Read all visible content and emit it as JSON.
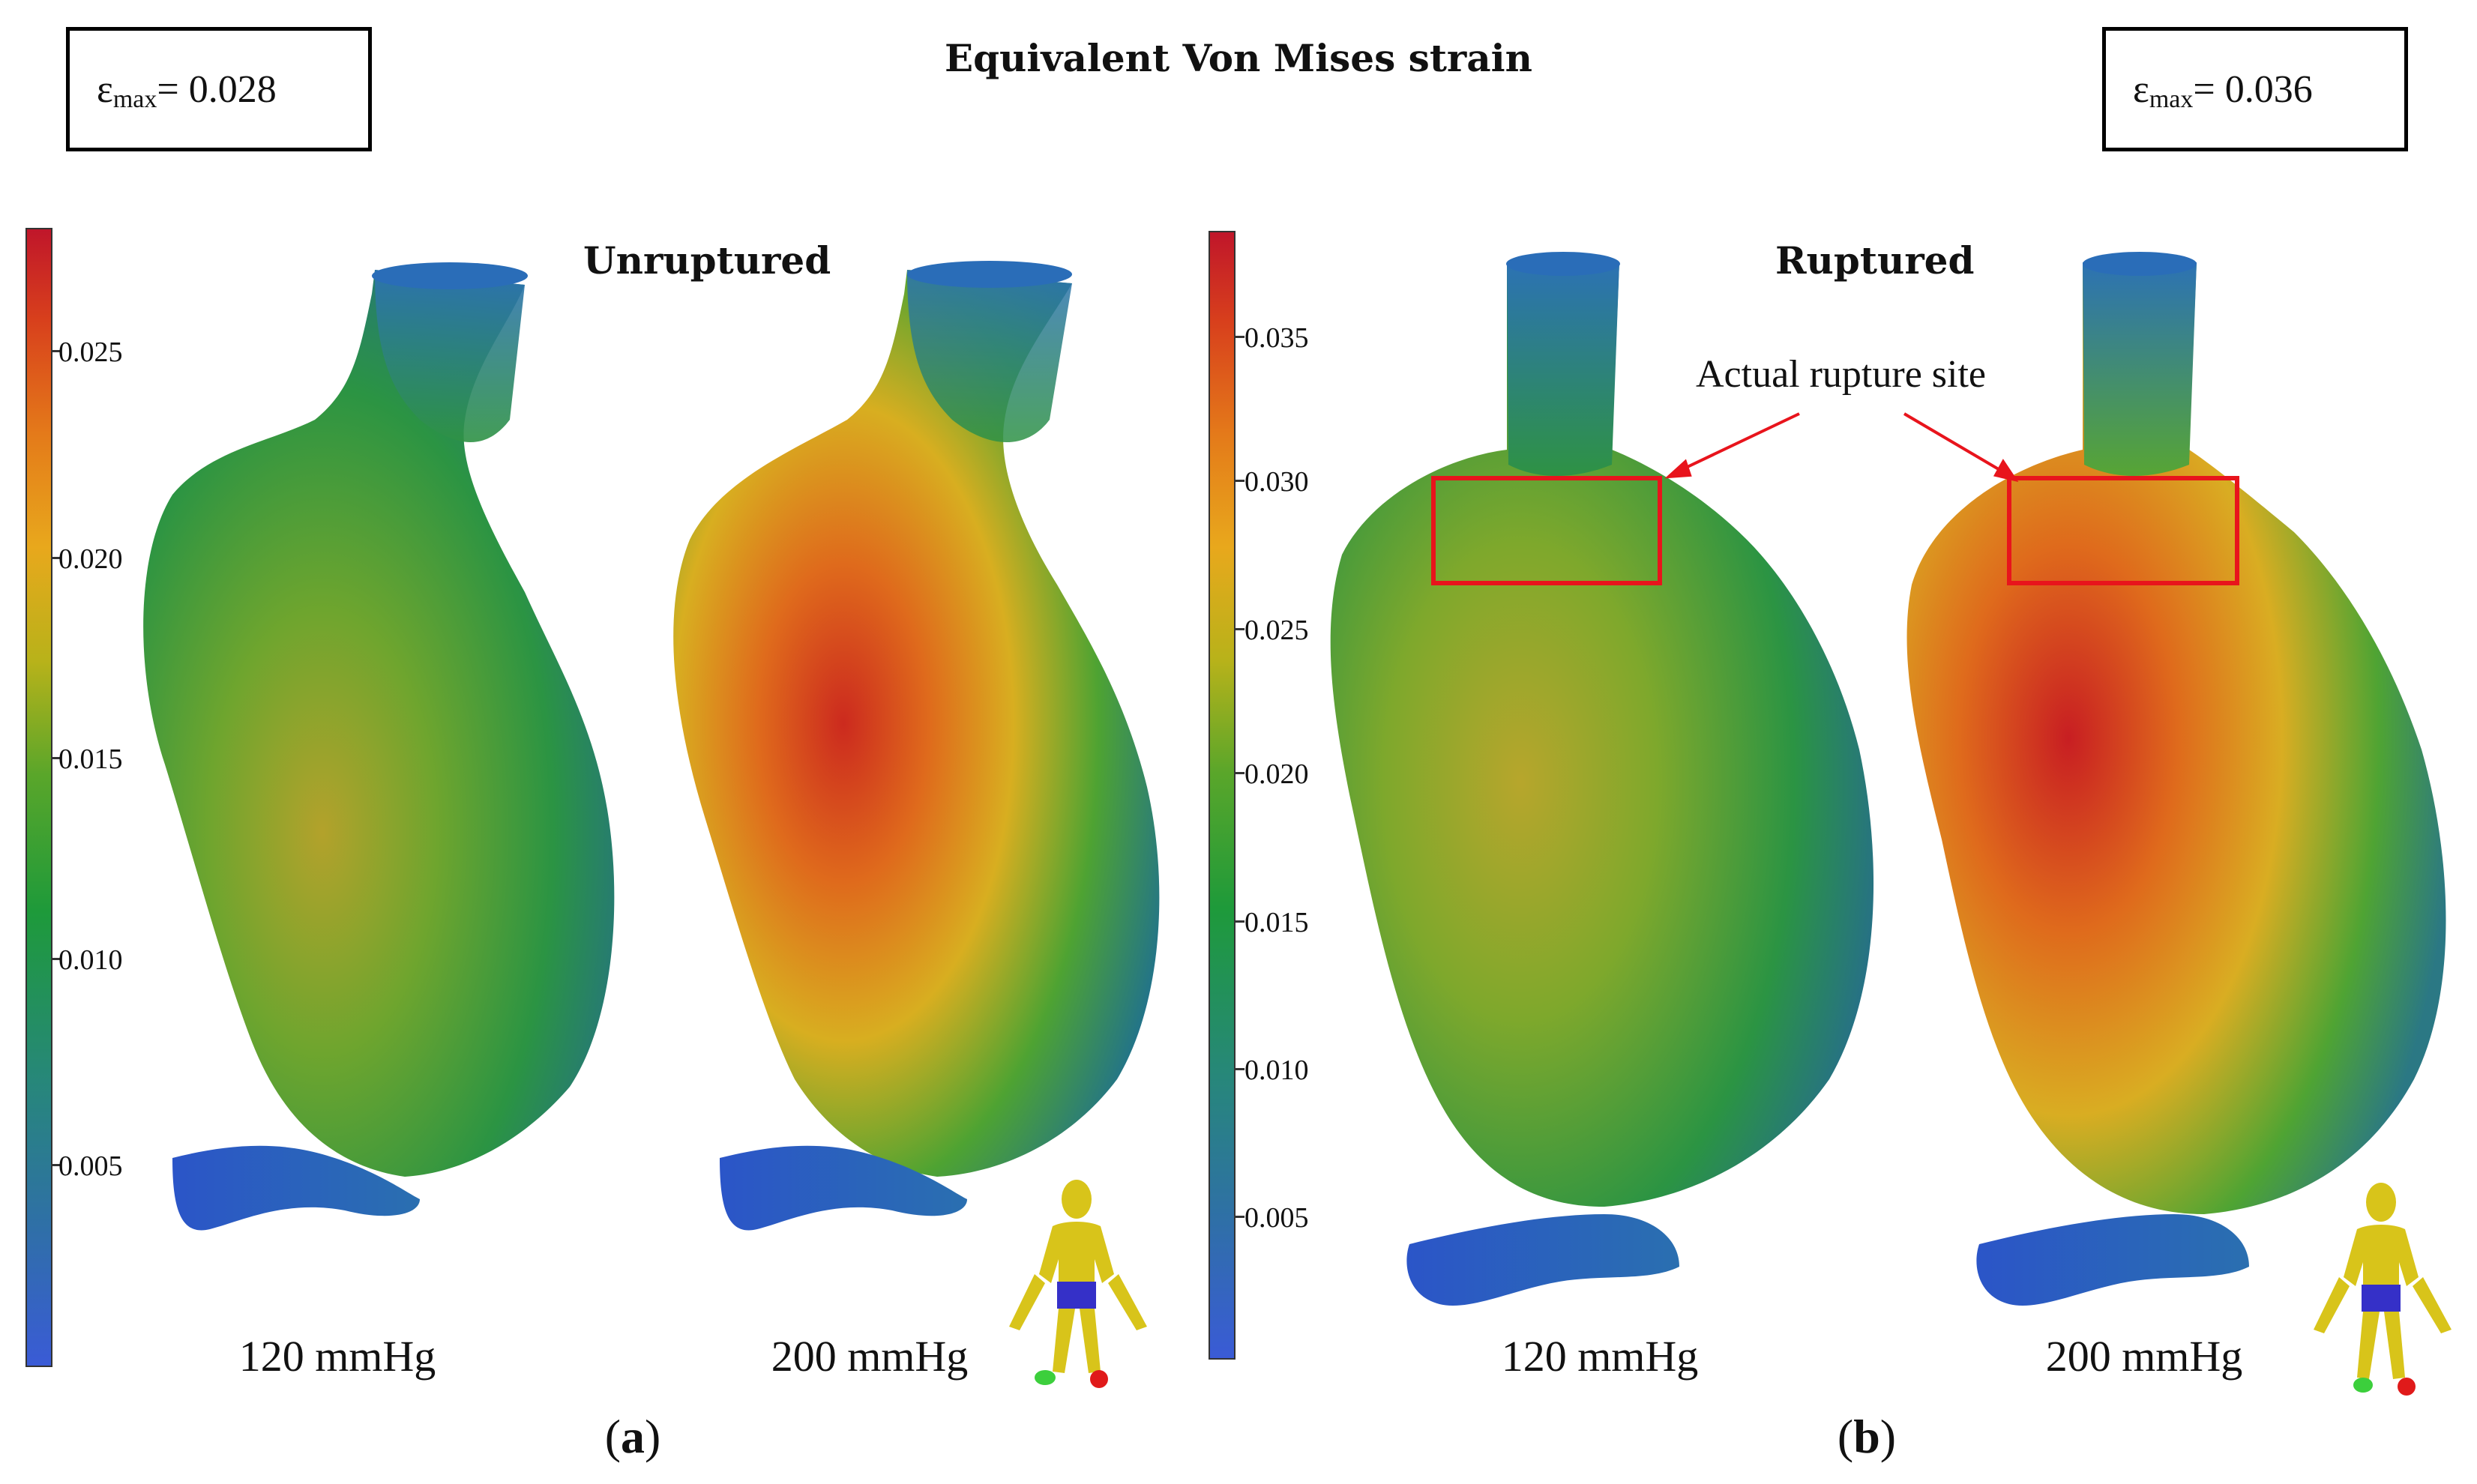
{
  "title": "Equivalent Von Mises strain",
  "left_max": {
    "symbol": "ε",
    "sub": "max",
    "value": "= 0.028"
  },
  "right_max": {
    "symbol": "ε",
    "sub": "max",
    "value": "= 0.036"
  },
  "panel_a": {
    "title": "Unruptured",
    "label_open": "(",
    "label_letter": "a",
    "label_close": ")",
    "pressures": [
      "120 mmHg",
      "200 mmHg"
    ],
    "colorbar_ticks": [
      "0.025",
      "0.020",
      "0.015",
      "0.010",
      "0.005"
    ]
  },
  "panel_b": {
    "title": "Ruptured",
    "label_open": "(",
    "label_letter": "b",
    "label_close": ")",
    "pressures": [
      "120 mmHg",
      "200 mmHg"
    ],
    "colorbar_ticks": [
      "0.035",
      "0.030",
      "0.025",
      "0.020",
      "0.015",
      "0.010",
      "0.005"
    ],
    "annotation": "Actual rupture site"
  },
  "colors": {
    "annotation": "#e8141c",
    "cold": "#2f5fc8",
    "hot": "#c81e24",
    "mid": "#2e9a3a"
  }
}
